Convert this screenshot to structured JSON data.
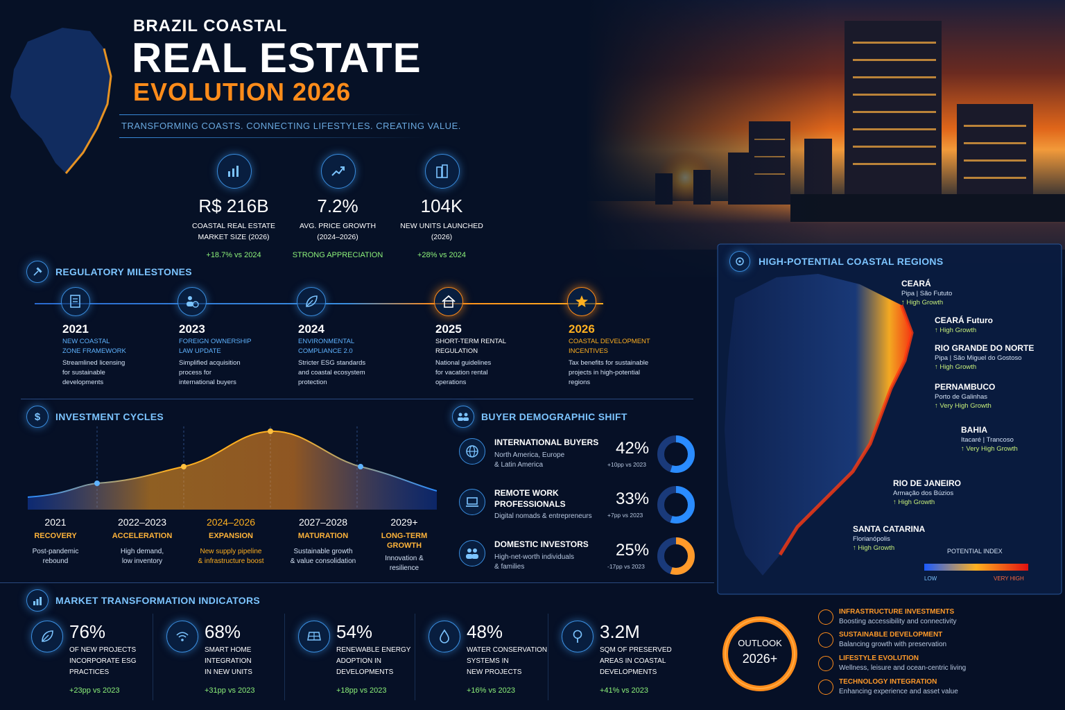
{
  "header": {
    "kicker": "BRAZIL COASTAL",
    "title": "REAL ESTATE",
    "subtitle": "EVOLUTION 2026",
    "tagline": "TRANSFORMING COASTS. CONNECTING LIFESTYLES. CREATING VALUE."
  },
  "kpis": [
    {
      "icon": "bar-chart-icon",
      "value": "R$ 216B",
      "label1": "COASTAL REAL ESTATE",
      "label2": "MARKET SIZE (2026)",
      "delta": "+18.7% vs 2024"
    },
    {
      "icon": "trend-up-icon",
      "value": "7.2%",
      "label1": "AVG. PRICE GROWTH",
      "label2": "(2024–2026)",
      "delta": "STRONG APPRECIATION"
    },
    {
      "icon": "buildings-icon",
      "value": "104K",
      "label1": "NEW UNITS LAUNCHED",
      "label2": "(2026)",
      "delta": "+28% vs 2024"
    }
  ],
  "milestones": {
    "heading": "REGULATORY MILESTONES",
    "items": [
      {
        "year": "2021",
        "name1": "NEW COASTAL",
        "name2": "ZONE FRAMEWORK",
        "d1": "Streamlined licensing",
        "d2": "for sustainable",
        "d3": "developments",
        "icon": "document-icon"
      },
      {
        "year": "2023",
        "name1": "FOREIGN OWNERSHIP",
        "name2": "LAW UPDATE",
        "d1": "Simplified acquisition",
        "d2": "process for",
        "d3": "international buyers",
        "icon": "person-globe-icon"
      },
      {
        "year": "2024",
        "name1": "ENVIRONMENTAL",
        "name2": "COMPLIANCE 2.0",
        "d1": "Stricter ESG standards",
        "d2": "and coastal ecosystem",
        "d3": "protection",
        "icon": "leaf-icon"
      },
      {
        "year": "2025",
        "name1": "SHORT-TERM RENTAL",
        "name2": "REGULATION",
        "d1": "National guidelines",
        "d2": "for vacation rental",
        "d3": "operations",
        "icon": "house-icon"
      },
      {
        "year": "2026",
        "name1": "COASTAL DEVELOPMENT",
        "name2": "INCENTIVES",
        "d1": "Tax benefits for sustainable",
        "d2": "projects in high-potential",
        "d3": "regions",
        "icon": "star-icon"
      }
    ]
  },
  "cycles": {
    "heading": "INVESTMENT CYCLES",
    "items": [
      {
        "year": "2021",
        "phase1": "RECOVERY",
        "phase2": "",
        "d1": "Post-pandemic",
        "d2": "rebound"
      },
      {
        "year": "2022–2023",
        "phase1": "ACCELERATION",
        "phase2": "",
        "d1": "High demand,",
        "d2": "low inventory"
      },
      {
        "year": "2024–2026",
        "phase1": "EXPANSION",
        "phase2": "",
        "d1": "New supply pipeline",
        "d2": "& infrastructure boost"
      },
      {
        "year": "2027–2028",
        "phase1": "MATURATION",
        "phase2": "",
        "d1": "Sustainable growth",
        "d2": "& value consolidation"
      },
      {
        "year": "2029+",
        "phase1": "LONG-TERM",
        "phase2": "GROWTH",
        "d1": "Innovation &",
        "d2": "resilience"
      }
    ]
  },
  "demographics": {
    "heading": "BUYER DEMOGRAPHIC SHIFT",
    "items": [
      {
        "icon": "globe-icon",
        "title1": "INTERNATIONAL BUYERS",
        "title2": "",
        "sub1": "North America, Europe",
        "sub2": "& Latin America",
        "pct": "42%",
        "share": 0.42,
        "delta": "+10pp vs 2023",
        "color": "#2a8cff"
      },
      {
        "icon": "laptop-icon",
        "title1": "REMOTE WORK",
        "title2": "PROFESSIONALS",
        "sub1": "Digital nomads & entrepreneurs",
        "sub2": "",
        "pct": "33%",
        "share": 0.33,
        "delta": "+7pp vs 2023",
        "color": "#2a8cff"
      },
      {
        "icon": "people-icon",
        "title1": "DOMESTIC INVESTORS",
        "title2": "",
        "sub1": "High-net-worth individuals",
        "sub2": "& families",
        "pct": "25%",
        "share": 0.25,
        "delta": "-17pp vs 2023",
        "color": "#ff9a2a"
      }
    ]
  },
  "indicators": {
    "heading": "MARKET TRANSFORMATION INDICATORS",
    "items": [
      {
        "icon": "leaf-icon",
        "value": "76%",
        "d1": "OF NEW PROJECTS",
        "d2": "INCORPORATE ESG",
        "d3": "PRACTICES",
        "delta": "+23pp vs 2023"
      },
      {
        "icon": "wifi-icon",
        "value": "68%",
        "d1": "SMART HOME",
        "d2": "INTEGRATION",
        "d3": "IN NEW UNITS",
        "delta": "+31pp vs 2023"
      },
      {
        "icon": "solar-panel-icon",
        "value": "54%",
        "d1": "RENEWABLE ENERGY",
        "d2": "ADOPTION IN",
        "d3": "DEVELOPMENTS",
        "delta": "+18pp vs 2023"
      },
      {
        "icon": "water-drop-icon",
        "value": "48%",
        "d1": "WATER CONSERVATION",
        "d2": "SYSTEMS IN",
        "d3": "NEW PROJECTS",
        "delta": "+16% vs 2023"
      },
      {
        "icon": "tree-icon",
        "value": "3.2M",
        "d1": "SQM OF PRESERVED",
        "d2": "AREAS IN COASTAL",
        "d3": "DEVELOPMENTS",
        "delta": "+41% vs 2023"
      }
    ]
  },
  "regions": {
    "heading": "HIGH-POTENTIAL COASTAL REGIONS",
    "items": [
      {
        "name": "CEARÁ",
        "town": "Pipa | São Fututo",
        "growth": "↑ High Growth"
      },
      {
        "name": "CEARÁ Futuro",
        "town": "",
        "growth": "↑ High Growth"
      },
      {
        "name": "RIO GRANDE DO NORTE",
        "town": "Pipa | São Miguel do Gostoso",
        "growth": "↑ High Growth"
      },
      {
        "name": "PERNAMBUCO",
        "town": "Porto de Galinhas",
        "growth": "↑ Very High Growth"
      },
      {
        "name": "BAHIA",
        "town": "Itacaré | Trancoso",
        "growth": "↑ Very High Growth"
      },
      {
        "name": "RIO DE JANEIRO",
        "town": "Armação dos Búzios",
        "growth": "↑ High Growth"
      },
      {
        "name": "SANTA CATARINA",
        "town": "Florianópolis",
        "growth": "↑ High Growth"
      }
    ],
    "legend_title": "POTENTIAL INDEX",
    "legend_low": "LOW",
    "legend_high": "VERY HIGH"
  },
  "outlook": {
    "ring_label1": "OUTLOOK",
    "ring_label2": "2026+",
    "items": [
      {
        "title": "INFRASTRUCTURE INVESTMENTS",
        "desc": "Boosting accessibility and connectivity"
      },
      {
        "title": "SUSTAINABLE DEVELOPMENT",
        "desc": "Balancing growth with preservation"
      },
      {
        "title": "LIFESTYLE EVOLUTION",
        "desc": "Wellness, leisure and ocean-centric living"
      },
      {
        "title": "TECHNOLOGY INTEGRATION",
        "desc": "Enhancing experience and asset value"
      }
    ]
  },
  "colors": {
    "accent_blue": "#3a8ee0",
    "accent_orange": "#ff8c1a",
    "positive": "#8df27a",
    "background": "#061126"
  }
}
